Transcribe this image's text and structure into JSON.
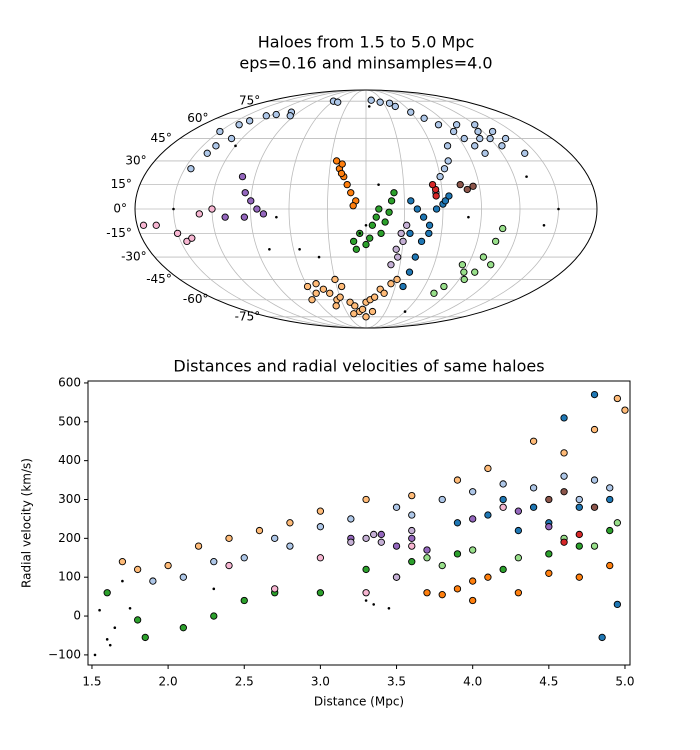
{
  "chart_data": [
    {
      "type": "scatter",
      "projection": "mollweide",
      "title": "Haloes from 1.5 to 5.0 Mpc",
      "subtitle": "eps=0.16 and minsamples=4.0",
      "grid": true,
      "yticks": [
        {
          "value": -75,
          "label": "-75°"
        },
        {
          "value": -60,
          "label": "-60°"
        },
        {
          "value": -45,
          "label": "-45°"
        },
        {
          "value": -30,
          "label": "-30°"
        },
        {
          "value": -15,
          "label": "-15°"
        },
        {
          "value": 0,
          "label": "0°"
        },
        {
          "value": 15,
          "label": "15°"
        },
        {
          "value": 30,
          "label": "30°"
        },
        {
          "value": 45,
          "label": "45°"
        },
        {
          "value": 60,
          "label": "60°"
        },
        {
          "value": 75,
          "label": "75°"
        }
      ],
      "meridians": [
        -150,
        -120,
        -90,
        -60,
        -30,
        0,
        30,
        60,
        90,
        120,
        150
      ],
      "series": [
        {
          "color": "#aec7e8",
          "marker": "circle",
          "x": [
            -150,
            -140,
            -135,
            -125,
            -115,
            -100,
            -95,
            -140,
            -145,
            -138,
            -130,
            -60,
            -50,
            10,
            25,
            40,
            45,
            60,
            70,
            80,
            90,
            95,
            100,
            105,
            110,
            115,
            120,
            125,
            75,
            70,
            60,
            65,
            55,
            120,
            130,
            135,
            140,
            100
          ],
          "values": [
            50,
            55,
            58,
            62,
            63,
            65,
            62,
            35,
            25,
            40,
            45,
            75,
            74,
            76,
            74,
            73,
            70,
            65,
            60,
            55,
            50,
            45,
            40,
            35,
            45,
            50,
            45,
            40,
            40,
            30,
            20,
            25,
            10,
            55,
            50,
            45,
            35,
            55
          ]
        },
        {
          "color": "#ff7f0e",
          "marker": "circle",
          "x": [
            -25,
            -22,
            -20,
            -18,
            -15,
            -12,
            -8,
            -10,
            -20
          ],
          "values": [
            30,
            25,
            28,
            20,
            15,
            10,
            5,
            2,
            22
          ]
        },
        {
          "color": "#ffbb78",
          "marker": "circle",
          "x": [
            -60,
            -55,
            -50,
            -45,
            -40,
            -35,
            -30,
            -25,
            -20,
            -15,
            -10,
            -5,
            0,
            5,
            10,
            15,
            20,
            -30,
            -40,
            -20,
            0,
            10,
            -65,
            25,
            30
          ],
          "values": [
            -50,
            -55,
            -48,
            -52,
            -55,
            -60,
            -58,
            -50,
            -62,
            -65,
            -70,
            -68,
            -62,
            -60,
            -58,
            -52,
            -55,
            -45,
            -65,
            -72,
            -75,
            -70,
            -60,
            -48,
            -45
          ]
        },
        {
          "color": "#2ca02c",
          "marker": "circle",
          "x": [
            -10,
            -5,
            0,
            5,
            8,
            12,
            15,
            18,
            20,
            22,
            10,
            3,
            -8
          ],
          "values": [
            -20,
            -15,
            -22,
            -10,
            -5,
            -15,
            -8,
            -2,
            5,
            10,
            0,
            -18,
            -25
          ]
        },
        {
          "color": "#1f77b4",
          "marker": "circle",
          "x": [
            35,
            40,
            45,
            50,
            55,
            60,
            62,
            65,
            45,
            42,
            40,
            38,
            50,
            35
          ],
          "values": [
            5,
            0,
            -5,
            -10,
            0,
            3,
            5,
            8,
            -20,
            -30,
            -40,
            -50,
            -15,
            -15
          ]
        },
        {
          "color": "#98df8a",
          "marker": "circle",
          "x": [
            85,
            90,
            95,
            100,
            105,
            108,
            110,
            80,
            75,
            100
          ],
          "values": [
            -35,
            -40,
            -45,
            -30,
            -20,
            -12,
            -35,
            -50,
            -55,
            -40
          ]
        },
        {
          "color": "#9467bd",
          "marker": "circle",
          "x": [
            -100,
            -95,
            -90,
            -85,
            -95,
            -80,
            -110
          ],
          "values": [
            20,
            10,
            5,
            0,
            -5,
            -3,
            -5
          ]
        },
        {
          "color": "#c5b0d5",
          "marker": "circle",
          "x": [
            25,
            27,
            30,
            28,
            32,
            22
          ],
          "values": [
            -25,
            -30,
            -20,
            -15,
            -10,
            -35
          ]
        },
        {
          "color": "#f7b6d2",
          "marker": "circle",
          "x": [
            -175,
            -165,
            -150,
            -145,
            -140,
            -130,
            -120
          ],
          "values": [
            -10,
            -10,
            -15,
            -20,
            -18,
            -3,
            0
          ]
        },
        {
          "color": "#8c564b",
          "marker": "circle",
          "x": [
            75,
            80,
            85
          ],
          "values": [
            15,
            12,
            14
          ]
        },
        {
          "color": "#d62728",
          "marker": "circle",
          "x": [
            55,
            55,
            53
          ],
          "values": [
            12,
            8,
            15
          ]
        },
        {
          "color": "#000000",
          "marker": "dot",
          "x": [
            -120,
            5,
            -40,
            -80,
            -5,
            0,
            140,
            150,
            130,
            -70,
            10,
            80,
            -150,
            60,
            -55
          ],
          "values": [
            40,
            70,
            -30,
            -25,
            -15,
            -10,
            -10,
            0,
            20,
            -5,
            15,
            -5,
            0,
            -70,
            -25
          ]
        }
      ]
    },
    {
      "type": "scatter",
      "title": "Distances and radial velocities of same haloes",
      "xlabel": "Distance (Mpc)",
      "ylabel": "Radial velocity (km/s)",
      "xlim": [
        1.474,
        5.033
      ],
      "ylim": [
        -126,
        605
      ],
      "xticks": [
        1.5,
        {
          "value": 2,
          "label": "2.0"
        },
        2.5,
        {
          "value": 3,
          "label": "3.0"
        },
        3.5,
        {
          "value": 4,
          "label": "4.0"
        },
        4.5,
        {
          "value": 5,
          "label": "5.0"
        }
      ],
      "yticks": [
        {
          "value": -100,
          "label": "−100"
        },
        0,
        100,
        200,
        300,
        400,
        500,
        600
      ],
      "series": [
        {
          "color": "#aec7e8",
          "marker": "circle",
          "x": [
            1.9,
            2.1,
            2.3,
            2.5,
            2.7,
            3.0,
            3.2,
            3.5,
            3.8,
            4.0,
            4.2,
            4.4,
            4.6,
            4.8,
            4.9,
            4.7,
            3.6,
            2.8
          ],
          "values": [
            90,
            100,
            140,
            150,
            200,
            230,
            250,
            280,
            300,
            320,
            340,
            330,
            360,
            350,
            330,
            300,
            260,
            180
          ]
        },
        {
          "color": "#ff7f0e",
          "marker": "circle",
          "x": [
            4.0,
            3.9,
            3.8,
            4.1,
            4.3,
            4.5,
            4.7,
            4.9,
            3.7,
            4.0
          ],
          "values": [
            40,
            70,
            55,
            100,
            60,
            110,
            100,
            130,
            60,
            90
          ]
        },
        {
          "color": "#ffbb78",
          "marker": "circle",
          "x": [
            1.7,
            1.8,
            2.0,
            2.2,
            2.4,
            2.6,
            2.8,
            3.0,
            3.3,
            3.6,
            3.9,
            4.1,
            4.4,
            4.6,
            4.8,
            4.95,
            5.0
          ],
          "values": [
            140,
            120,
            130,
            180,
            200,
            220,
            240,
            270,
            300,
            310,
            350,
            380,
            450,
            420,
            480,
            560,
            530
          ]
        },
        {
          "color": "#2ca02c",
          "marker": "circle",
          "x": [
            1.6,
            1.85,
            2.1,
            2.3,
            2.5,
            2.7,
            3.0,
            3.3,
            3.6,
            3.9,
            4.2,
            4.5,
            4.7,
            4.9,
            1.8
          ],
          "values": [
            60,
            -55,
            -30,
            0,
            40,
            60,
            60,
            120,
            140,
            160,
            120,
            160,
            180,
            220,
            -10
          ]
        },
        {
          "color": "#1f77b4",
          "marker": "circle",
          "x": [
            3.9,
            4.1,
            4.2,
            4.4,
            4.5,
            4.6,
            4.7,
            4.8,
            4.85,
            4.95,
            4.9,
            4.3
          ],
          "values": [
            240,
            260,
            300,
            280,
            240,
            510,
            280,
            570,
            -55,
            30,
            300,
            220
          ]
        },
        {
          "color": "#98df8a",
          "marker": "circle",
          "x": [
            3.7,
            4.0,
            4.3,
            4.6,
            4.8,
            3.5,
            3.8,
            4.95
          ],
          "values": [
            150,
            170,
            150,
            200,
            180,
            100,
            130,
            240
          ]
        },
        {
          "color": "#9467bd",
          "marker": "circle",
          "x": [
            3.4,
            3.5,
            3.6,
            3.7,
            4.0,
            4.3,
            4.5,
            3.2
          ],
          "values": [
            210,
            180,
            200,
            170,
            250,
            270,
            230,
            200
          ]
        },
        {
          "color": "#c5b0d5",
          "marker": "circle",
          "x": [
            3.2,
            3.3,
            3.35,
            3.4,
            3.5,
            3.6
          ],
          "values": [
            190,
            200,
            210,
            190,
            100,
            220
          ]
        },
        {
          "color": "#f7b6d2",
          "marker": "circle",
          "x": [
            2.4,
            2.7,
            3.0,
            3.3,
            3.6,
            4.2
          ],
          "values": [
            130,
            70,
            150,
            60,
            180,
            280
          ]
        },
        {
          "color": "#8c564b",
          "marker": "circle",
          "x": [
            4.5,
            4.6,
            4.8
          ],
          "values": [
            300,
            320,
            280
          ]
        },
        {
          "color": "#d62728",
          "marker": "circle",
          "x": [
            4.6,
            4.7
          ],
          "values": [
            190,
            210
          ]
        },
        {
          "color": "#000000",
          "marker": "dot",
          "x": [
            1.52,
            1.55,
            1.6,
            1.62,
            1.65,
            1.75,
            3.3,
            3.35,
            3.45,
            2.3,
            1.7
          ],
          "values": [
            -100,
            15,
            -60,
            -75,
            -30,
            20,
            40,
            30,
            20,
            70,
            90
          ]
        }
      ]
    }
  ]
}
